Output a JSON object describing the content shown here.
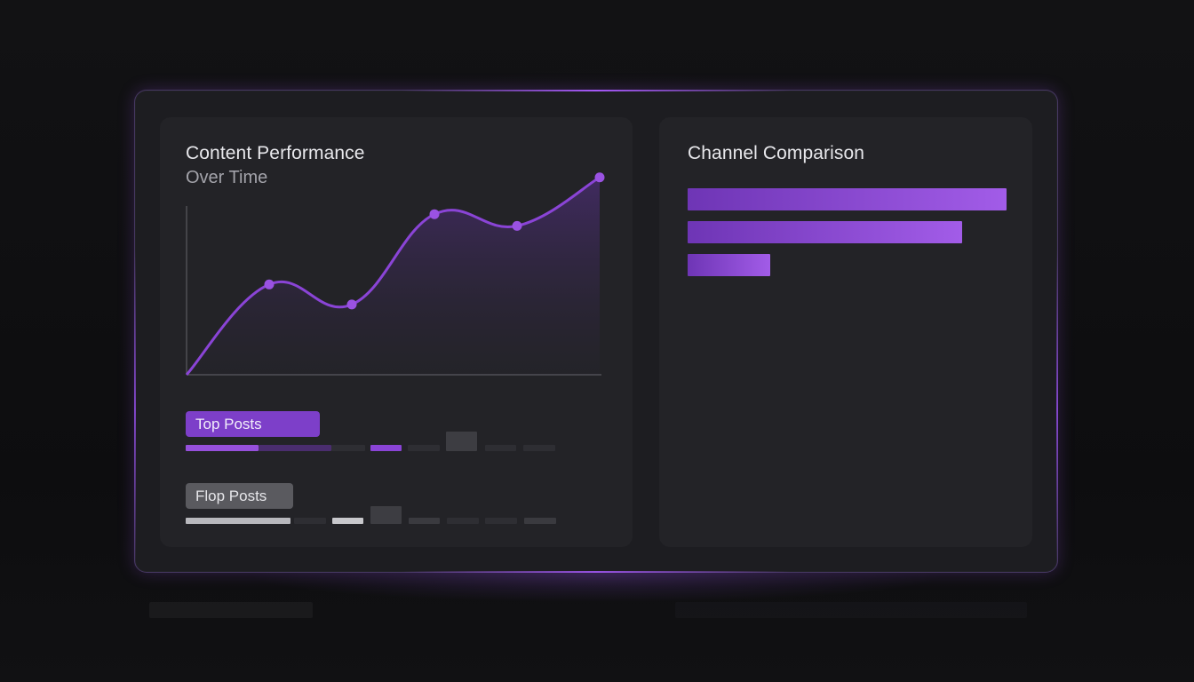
{
  "dashboard": {
    "left_panel": {
      "title": "Content Performance",
      "subtitle": "Over Time",
      "top_posts_label": "Top Posts",
      "flop_posts_label": "Flop Posts"
    },
    "right_panel": {
      "title": "Channel Comparison"
    }
  },
  "colors": {
    "accent": "#8a44d6",
    "accent_light": "#a25ce8",
    "panel": "#232327",
    "frame": "#1d1d21"
  },
  "chart_data": [
    {
      "type": "area",
      "title": "Content Performance",
      "subtitle": "Over Time",
      "x": [
        0,
        1,
        2,
        3,
        4,
        5
      ],
      "values": [
        0,
        54,
        42,
        96,
        89,
        118
      ],
      "ylim": [
        0,
        120
      ],
      "grid": false
    },
    {
      "type": "bar",
      "orientation": "horizontal",
      "title": "Channel Comparison",
      "values": [
        100,
        86,
        26
      ],
      "xlim": [
        0,
        100
      ]
    }
  ]
}
